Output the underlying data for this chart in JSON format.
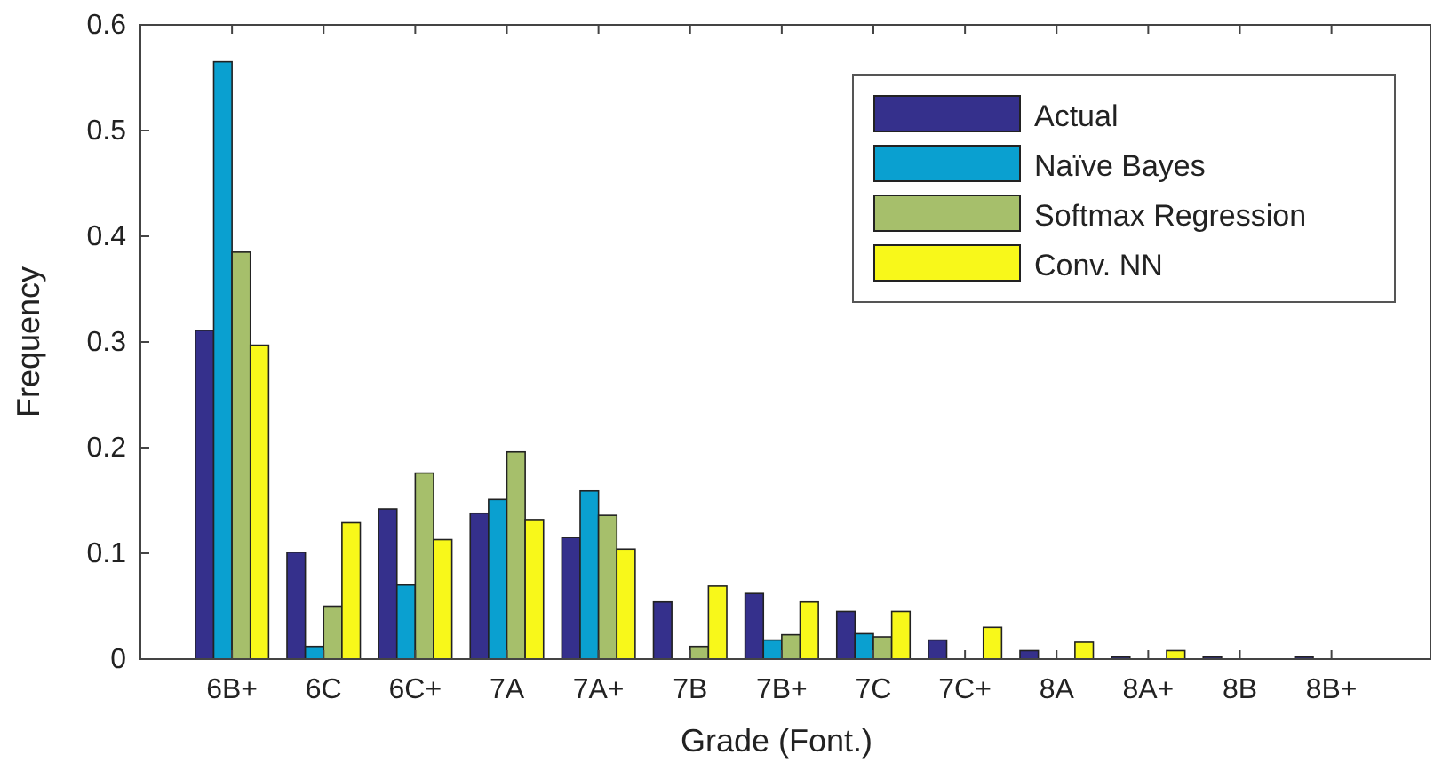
{
  "chart_data": {
    "type": "bar",
    "xlabel": "Grade (Font.)",
    "ylabel": "Frequency",
    "categories": [
      "6B+",
      "6C",
      "6C+",
      "7A",
      "7A+",
      "7B",
      "7B+",
      "7C",
      "7C+",
      "8A",
      "8A+",
      "8B",
      "8B+"
    ],
    "series": [
      {
        "name": "Actual",
        "color": "#35308c",
        "values": [
          0.311,
          0.101,
          0.142,
          0.138,
          0.115,
          0.054,
          0.062,
          0.045,
          0.018,
          0.008,
          0.002,
          0.002,
          0.002
        ]
      },
      {
        "name": "Naïve Bayes",
        "color": "#0aa0d0",
        "values": [
          0.565,
          0.012,
          0.07,
          0.151,
          0.159,
          0,
          0.018,
          0.024,
          0,
          0,
          0,
          0,
          0
        ]
      },
      {
        "name": "Softmax Regression",
        "color": "#a6bf6b",
        "values": [
          0.385,
          0.05,
          0.176,
          0.196,
          0.136,
          0.012,
          0.023,
          0.021,
          0,
          0,
          0,
          0,
          0
        ]
      },
      {
        "name": "Conv. NN",
        "color": "#f8f81a",
        "values": [
          0.297,
          0.129,
          0.113,
          0.132,
          0.104,
          0.069,
          0.054,
          0.045,
          0.03,
          0.016,
          0.008,
          0,
          0
        ]
      }
    ],
    "ylim": [
      0,
      0.6
    ],
    "yticks": [
      0,
      0.1,
      0.2,
      0.3,
      0.4,
      0.5,
      0.6
    ],
    "legend": "top right",
    "grid": false
  }
}
